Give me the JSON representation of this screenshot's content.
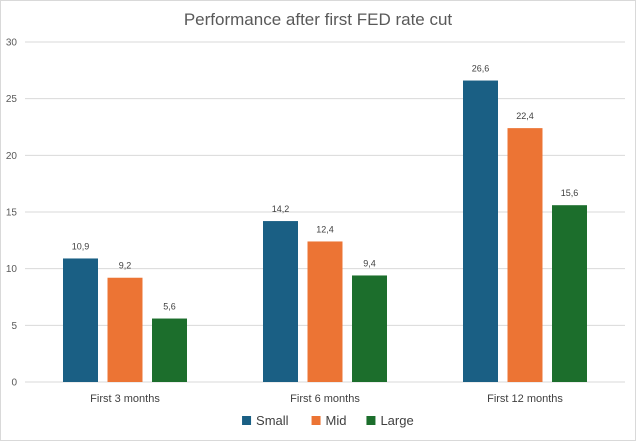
{
  "chart_data": {
    "type": "bar",
    "title": "Performance after first FED rate cut",
    "xlabel": "",
    "ylabel": "",
    "categories": [
      "First 3 months",
      "First 6 months",
      "First 12 months"
    ],
    "series": [
      {
        "name": "Small",
        "color": "#1a5f84",
        "values": [
          10.9,
          14.2,
          26.6
        ],
        "labels": [
          "10,9",
          "14,2",
          "26,6"
        ]
      },
      {
        "name": "Mid",
        "color": "#ec7434",
        "values": [
          9.2,
          12.4,
          22.4
        ],
        "labels": [
          "9,2",
          "12,4",
          "22,4"
        ]
      },
      {
        "name": "Large",
        "color": "#1c6e2c",
        "values": [
          5.6,
          9.4,
          15.6
        ],
        "labels": [
          "5,6",
          "9,4",
          "15,6"
        ]
      }
    ],
    "ylim": [
      0,
      30
    ],
    "yticks": [
      0,
      5,
      10,
      15,
      20,
      25,
      30
    ],
    "grid": true,
    "legend": "bottom"
  }
}
